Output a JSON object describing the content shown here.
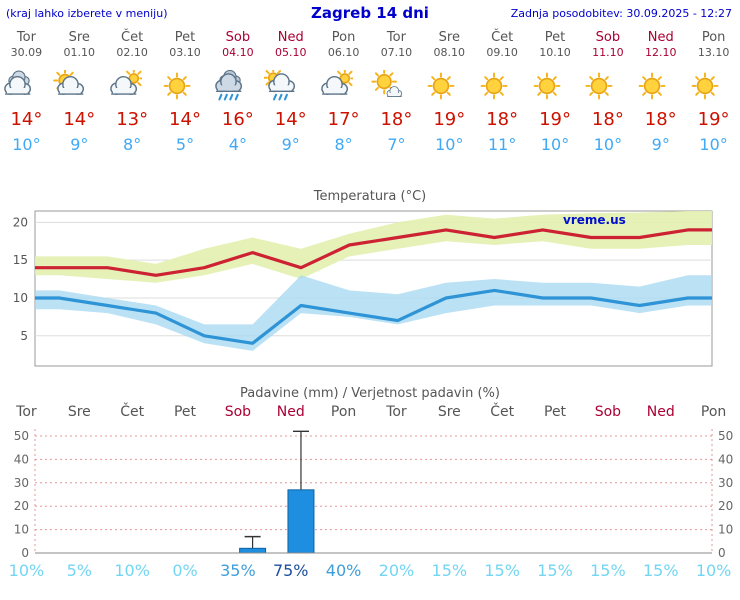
{
  "header": {
    "menu_hint": "(kraj lahko izberete v meniju)",
    "title": "Zagreb 14 dni",
    "last_update": "Zadnja posodobitev: 30.09.2025 - 12:27"
  },
  "watermark": "vreme.us",
  "colors": {
    "header_blue": "#0000cc",
    "weekday": "#555555",
    "weekend": "#aa0033",
    "temp_max_text": "#cc1100",
    "temp_min_text": "#3fa9f5",
    "max_line": "#cc2233",
    "min_line": "#2e94d6",
    "max_band": "#e2efae",
    "min_band": "#a8d8f2",
    "grid": "#dddddd",
    "axis": "#999999",
    "tick_text": "#555555",
    "precip_grid": "#e09898",
    "bar_fill": "#1e8fe0",
    "bar_edge": "#11639e",
    "whisker": "#333333",
    "watermark_blue": "#0010cc"
  },
  "forecast": {
    "days": [
      {
        "name": "Tor",
        "date": "30.09",
        "weekend": false,
        "icon": "clouds",
        "temp_max": "14°",
        "temp_min": "10°",
        "precip_prob": "10%",
        "prob_color": "#72d6f2"
      },
      {
        "name": "Sre",
        "date": "01.10",
        "weekend": false,
        "icon": "partly-cloudy",
        "temp_max": "14°",
        "temp_min": "9°",
        "precip_prob": "5%",
        "prob_color": "#72d6f2"
      },
      {
        "name": "Čet",
        "date": "02.10",
        "weekend": false,
        "icon": "cloud-sun",
        "temp_max": "13°",
        "temp_min": "8°",
        "precip_prob": "10%",
        "prob_color": "#72d6f2"
      },
      {
        "name": "Pet",
        "date": "03.10",
        "weekend": false,
        "icon": "sunny",
        "temp_max": "14°",
        "temp_min": "5°",
        "precip_prob": "0%",
        "prob_color": "#72d6f2"
      },
      {
        "name": "Sob",
        "date": "04.10",
        "weekend": true,
        "icon": "rain",
        "temp_max": "16°",
        "temp_min": "4°",
        "precip_prob": "35%",
        "prob_color": "#3e9fd8"
      },
      {
        "name": "Ned",
        "date": "05.10",
        "weekend": true,
        "icon": "rain-sun",
        "temp_max": "14°",
        "temp_min": "9°",
        "precip_prob": "75%",
        "prob_color": "#1b4f9e"
      },
      {
        "name": "Pon",
        "date": "06.10",
        "weekend": false,
        "icon": "cloud-sun",
        "temp_max": "17°",
        "temp_min": "8°",
        "precip_prob": "40%",
        "prob_color": "#3e9fd8"
      },
      {
        "name": "Tor",
        "date": "07.10",
        "weekend": false,
        "icon": "sun-cloud",
        "temp_max": "18°",
        "temp_min": "7°",
        "precip_prob": "20%",
        "prob_color": "#72d6f2"
      },
      {
        "name": "Sre",
        "date": "08.10",
        "weekend": false,
        "icon": "sunny",
        "temp_max": "19°",
        "temp_min": "10°",
        "precip_prob": "15%",
        "prob_color": "#72d6f2"
      },
      {
        "name": "Čet",
        "date": "09.10",
        "weekend": false,
        "icon": "sunny",
        "temp_max": "18°",
        "temp_min": "11°",
        "precip_prob": "15%",
        "prob_color": "#72d6f2"
      },
      {
        "name": "Pet",
        "date": "10.10",
        "weekend": false,
        "icon": "sunny",
        "temp_max": "19°",
        "temp_min": "10°",
        "precip_prob": "15%",
        "prob_color": "#72d6f2"
      },
      {
        "name": "Sob",
        "date": "11.10",
        "weekend": true,
        "icon": "sunny",
        "temp_max": "18°",
        "temp_min": "10°",
        "precip_prob": "15%",
        "prob_color": "#72d6f2"
      },
      {
        "name": "Ned",
        "date": "12.10",
        "weekend": true,
        "icon": "sunny",
        "temp_max": "18°",
        "temp_min": "9°",
        "precip_prob": "15%",
        "prob_color": "#72d6f2"
      },
      {
        "name": "Pon",
        "date": "13.10",
        "weekend": false,
        "icon": "sunny",
        "temp_max": "19°",
        "temp_min": "10°",
        "precip_prob": "10%",
        "prob_color": "#72d6f2"
      }
    ]
  },
  "chart_data": [
    {
      "type": "line",
      "title": "Temperatura (°C)",
      "categories": [
        "Tor",
        "Sre",
        "Čet",
        "Pet",
        "Sob",
        "Ned",
        "Pon",
        "Tor",
        "Sre",
        "Čet",
        "Pet",
        "Sob",
        "Ned",
        "Pon"
      ],
      "series": [
        {
          "name": "max",
          "values": [
            14,
            14,
            13,
            14,
            16,
            14,
            17,
            18,
            19,
            18,
            19,
            18,
            18,
            19
          ]
        },
        {
          "name": "min",
          "values": [
            10,
            9,
            8,
            5,
            4,
            9,
            8,
            7,
            10,
            11,
            10,
            10,
            9,
            10
          ]
        },
        {
          "name": "max_band_upper",
          "values": [
            15.5,
            15.5,
            14.5,
            16.5,
            18,
            16.5,
            18.5,
            20,
            21,
            20.5,
            21,
            21.2,
            21.3,
            21.5
          ]
        },
        {
          "name": "max_band_lower",
          "values": [
            13,
            12.5,
            12,
            13,
            14.5,
            12.5,
            15.5,
            16.5,
            17.5,
            17,
            17.5,
            16.5,
            16.5,
            17
          ]
        },
        {
          "name": "min_band_upper",
          "values": [
            11,
            10,
            9,
            6.5,
            6.5,
            13,
            11,
            10.5,
            12,
            12.5,
            12,
            12,
            11.5,
            13
          ]
        },
        {
          "name": "min_band_lower",
          "values": [
            8.5,
            8,
            6.5,
            4,
            3,
            8,
            7.5,
            6.5,
            8,
            9,
            9,
            9,
            8,
            9
          ]
        }
      ],
      "ylim": [
        1,
        21.5
      ],
      "yticks": [
        5,
        10,
        15,
        20
      ],
      "grid": true,
      "legend_position": "none"
    },
    {
      "type": "bar",
      "title": "Padavine (mm) / Verjetnost padavin (%)",
      "categories": [
        "Tor",
        "Sre",
        "Čet",
        "Pet",
        "Sob",
        "Ned",
        "Pon",
        "Tor",
        "Sre",
        "Čet",
        "Pet",
        "Sob",
        "Ned",
        "Pon"
      ],
      "values": [
        0,
        0,
        0,
        0,
        2,
        27,
        0,
        0,
        0,
        0,
        0,
        0,
        0,
        0
      ],
      "whisker_max": [
        0,
        0,
        0,
        0,
        7,
        52,
        0,
        0,
        0,
        0,
        0,
        0,
        0,
        0
      ],
      "probabilities_pct": [
        10,
        5,
        10,
        0,
        35,
        75,
        40,
        20,
        15,
        15,
        15,
        15,
        15,
        10
      ],
      "ylim": [
        0,
        53
      ],
      "yticks": [
        0,
        10,
        20,
        30,
        40,
        50
      ],
      "grid": true
    }
  ]
}
